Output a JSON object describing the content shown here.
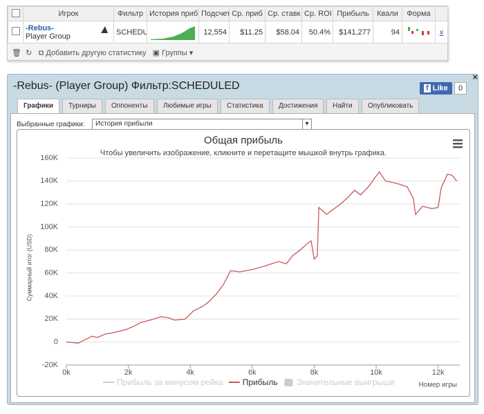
{
  "table": {
    "headers": [
      "Игрок",
      "Фильтр",
      "История приб",
      "Подсчет",
      "Ср. приб",
      "Ср. ставк",
      "Ср. ROI",
      "Прибыль",
      "Квали",
      "Форма"
    ],
    "rows": [
      {
        "player": "-Rebus-",
        "group": "Player Group",
        "values": [
          "SCHEDULED",
          "12,554",
          "$11.25",
          "$58.04",
          "50.4%",
          "$141,277",
          "94"
        ],
        "remove": "x"
      }
    ]
  },
  "toolbar": {
    "add": "Добавить другую статистику",
    "groups": "Группы"
  },
  "panel": {
    "title": "-Rebus- (Player Group) Фильтр:SCHEDULED",
    "like": "Like",
    "like_count": "0",
    "tabs": [
      "Графики",
      "Турниры",
      "Оппоненты",
      "Любимые игры",
      "Статистика",
      "Достижения",
      "Найти",
      "Опубликовать"
    ],
    "selector_label": "Выбранные графики:",
    "selector_value": "История прибыли"
  },
  "chart_data": {
    "type": "line",
    "title": "Общая прибыль",
    "subtitle": "Чтобы увеличить изображение, кликните и перетащите мышкой внутрь графика.",
    "y_label": "Суммарный итог (USD)",
    "x_label": "Номер игры",
    "x": [
      0,
      200,
      380,
      600,
      830,
      1000,
      1270,
      1500,
      1940,
      2200,
      2400,
      2700,
      3060,
      3300,
      3500,
      3840,
      4100,
      4400,
      4600,
      4850,
      5070,
      5300,
      5600,
      6000,
      6400,
      6850,
      7100,
      7300,
      7550,
      7750,
      7900,
      8000,
      8100,
      8150,
      8400,
      8850,
      9100,
      9300,
      9500,
      9750,
      10100,
      10300,
      10650,
      11000,
      11200,
      11270,
      11500,
      11800,
      12000,
      12100,
      12300,
      12450,
      12600
    ],
    "series": [
      {
        "name": "Прибыль за минусом рейка",
        "color": "#cccccc",
        "marker": "line",
        "visible": false
      },
      {
        "name": "Прибыль",
        "color": "#c4585a",
        "marker": "line",
        "visible": true,
        "values": [
          0,
          -500,
          -1000,
          2000,
          5000,
          4000,
          7000,
          8000,
          11000,
          14000,
          17000,
          19000,
          22000,
          21000,
          19000,
          20000,
          27000,
          31000,
          35000,
          42000,
          50000,
          62000,
          61000,
          63000,
          66000,
          70000,
          68000,
          75000,
          80000,
          85000,
          88000,
          72000,
          75000,
          117000,
          111000,
          120000,
          126000,
          132000,
          128000,
          135000,
          148000,
          140000,
          138000,
          135000,
          125000,
          111000,
          118000,
          116000,
          117000,
          134000,
          146000,
          145000,
          140000
        ]
      },
      {
        "name": "Значительные выигрыши",
        "color": "#cccccc",
        "marker": "square",
        "visible": false
      }
    ],
    "xlim": [
      0,
      12700
    ],
    "ylim": [
      -20000,
      160000
    ],
    "xticks": [
      {
        "value": 0,
        "label": "0k"
      },
      {
        "value": 2000,
        "label": "2k"
      },
      {
        "value": 4000,
        "label": "4k"
      },
      {
        "value": 6000,
        "label": "6k"
      },
      {
        "value": 8000,
        "label": "8k"
      },
      {
        "value": 10000,
        "label": "10k"
      },
      {
        "value": 12000,
        "label": "12k"
      }
    ],
    "yticks": [
      {
        "value": -20000,
        "label": "-20K"
      },
      0,
      {
        "value": 20000,
        "label": "20K"
      },
      {
        "value": 40000,
        "label": "40K"
      },
      {
        "value": 60000,
        "label": "60K"
      },
      {
        "value": 80000,
        "label": "80K"
      },
      {
        "value": 100000,
        "label": "100K"
      },
      {
        "value": 120000,
        "label": "120K"
      },
      {
        "value": 140000,
        "label": "140K"
      },
      {
        "value": 160000,
        "label": "160K"
      }
    ],
    "grid": true
  }
}
